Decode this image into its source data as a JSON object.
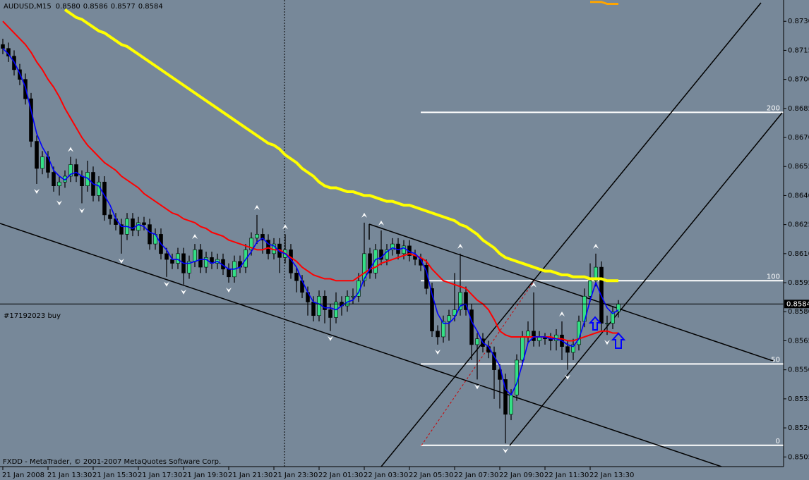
{
  "chart_data": {
    "type": "candlestick",
    "title": "AUDUSD,M15",
    "quote_labels": [
      "0.8580",
      "0.8586",
      "0.8577",
      "0.8584"
    ],
    "order_label": "#17192023 buy",
    "footer": "FXDD - MetaTrader, © 2001-2007 MetaQuotes Software Corp.",
    "background": "#778899",
    "up_color": "#33e085",
    "down_color": "#000000",
    "categories": [
      "21 Jan 2008",
      null,
      null,
      null,
      null,
      null,
      null,
      null,
      "21 Jan 13:30",
      null,
      null,
      null,
      null,
      null,
      null,
      null,
      "21 Jan 15:30",
      null,
      null,
      null,
      null,
      null,
      null,
      null,
      "21 Jan 17:30",
      null,
      null,
      null,
      null,
      null,
      null,
      null,
      "21 Jan 19:30",
      null,
      null,
      null,
      null,
      null,
      null,
      null,
      "21 Jan 21:30",
      null,
      null,
      null,
      null,
      null,
      null,
      null,
      "21 Jan 23:30",
      null,
      null,
      null,
      null,
      null,
      null,
      null,
      "22 Jan 01:30",
      null,
      null,
      null,
      null,
      null,
      null,
      null,
      "22 Jan 03:30",
      null,
      null,
      null,
      null,
      null,
      null,
      null,
      "22 Jan 05:30",
      null,
      null,
      null,
      null,
      null,
      null,
      null,
      "22 Jan 07:30",
      null,
      null,
      null,
      null,
      null,
      null,
      null,
      "22 Jan 09:30",
      null,
      null,
      null,
      null,
      null,
      null,
      null,
      "22 Jan 11:30",
      null,
      null,
      null,
      null,
      null,
      null,
      null,
      "22 Jan 13:30",
      null,
      null,
      null,
      null,
      null
    ],
    "open": [
      0.8718,
      0.8716,
      0.8712,
      0.8705,
      0.87,
      0.869,
      0.8668,
      0.8654,
      0.866,
      0.8652,
      0.8645,
      0.8647,
      0.865,
      0.8656,
      0.865,
      0.8645,
      0.8652,
      0.864,
      0.8647,
      0.863,
      0.8628,
      0.8625,
      0.862,
      0.8628,
      0.8622,
      0.8626,
      0.8625,
      0.8615,
      0.862,
      0.861,
      0.8607,
      0.8605,
      0.861,
      0.86,
      0.8606,
      0.8612,
      0.8603,
      0.8608,
      0.8605,
      0.8607,
      0.8602,
      0.8598,
      0.8606,
      0.8603,
      0.8612,
      0.8618,
      0.862,
      0.8617,
      0.861,
      0.8615,
      0.8608,
      0.8612,
      0.86,
      0.8596,
      0.859,
      0.8585,
      0.8578,
      0.8588,
      0.8581,
      0.8577,
      0.8585,
      0.8583,
      0.8588,
      0.8588,
      0.8596,
      0.861,
      0.86,
      0.8612,
      0.8607,
      0.8612,
      0.8615,
      0.861,
      0.8614,
      0.8609,
      0.8607,
      0.8604,
      0.8592,
      0.857,
      0.8567,
      0.8575,
      0.8578,
      0.8581,
      0.859,
      0.8581,
      0.8563,
      0.8566,
      0.8562,
      0.8559,
      0.855,
      0.8545,
      0.8527,
      0.8537,
      0.8555,
      0.8567,
      0.857,
      0.8565,
      0.8567,
      0.8566,
      0.8565,
      0.8568,
      0.8562,
      0.8559,
      0.8563,
      0.8575,
      0.8588,
      0.8596,
      0.8603,
      0.8574,
      0.8574,
      0.858
    ],
    "high": [
      0.8721,
      0.8719,
      0.8715,
      0.8708,
      0.8703,
      0.8693,
      0.8671,
      0.8663,
      0.8663,
      0.8655,
      0.865,
      0.8653,
      0.866,
      0.8659,
      0.8653,
      0.8658,
      0.8655,
      0.865,
      0.865,
      0.8633,
      0.8631,
      0.8628,
      0.8631,
      0.8631,
      0.8629,
      0.8629,
      0.8628,
      0.8623,
      0.8623,
      0.8613,
      0.861,
      0.8613,
      0.8613,
      0.8609,
      0.8615,
      0.8615,
      0.8611,
      0.8611,
      0.861,
      0.861,
      0.8605,
      0.8609,
      0.8609,
      0.8615,
      0.8621,
      0.863,
      0.8623,
      0.862,
      0.8618,
      0.8618,
      0.862,
      0.8615,
      0.8603,
      0.8599,
      0.8593,
      0.8588,
      0.8591,
      0.8591,
      0.8584,
      0.859,
      0.8588,
      0.8591,
      0.8592,
      0.86,
      0.8626,
      0.8613,
      0.8615,
      0.8622,
      0.8615,
      0.8618,
      0.8618,
      0.8617,
      0.8617,
      0.8612,
      0.861,
      0.8607,
      0.8595,
      0.8573,
      0.8578,
      0.8581,
      0.86,
      0.861,
      0.8593,
      0.8584,
      0.8569,
      0.8569,
      0.8565,
      0.8562,
      0.8553,
      0.8548,
      0.854,
      0.8558,
      0.857,
      0.8575,
      0.859,
      0.857,
      0.8569,
      0.8569,
      0.8571,
      0.8575,
      0.8565,
      0.8566,
      0.8578,
      0.8592,
      0.8605,
      0.861,
      0.8606,
      0.8578,
      0.8583,
      0.8586
    ],
    "low": [
      0.8713,
      0.8709,
      0.8702,
      0.8697,
      0.8687,
      0.8665,
      0.8646,
      0.8651,
      0.8649,
      0.8642,
      0.864,
      0.8644,
      0.8647,
      0.8647,
      0.8636,
      0.8642,
      0.8637,
      0.8637,
      0.8627,
      0.8625,
      0.8622,
      0.861,
      0.8617,
      0.8619,
      0.8619,
      0.8622,
      0.8612,
      0.8612,
      0.8607,
      0.8598,
      0.8602,
      0.8602,
      0.8594,
      0.8597,
      0.8603,
      0.86,
      0.86,
      0.8602,
      0.8602,
      0.8599,
      0.8595,
      0.8595,
      0.86,
      0.86,
      0.8609,
      0.8615,
      0.861,
      0.8607,
      0.8607,
      0.86,
      0.8605,
      0.8597,
      0.859,
      0.8587,
      0.8578,
      0.8575,
      0.8575,
      0.8574,
      0.857,
      0.8574,
      0.8578,
      0.858,
      0.8584,
      0.8585,
      0.8593,
      0.8597,
      0.8597,
      0.8604,
      0.8604,
      0.8609,
      0.8607,
      0.8607,
      0.8606,
      0.8604,
      0.8601,
      0.8589,
      0.8567,
      0.8563,
      0.8564,
      0.8565,
      0.8575,
      0.8578,
      0.8578,
      0.8555,
      0.8545,
      0.8559,
      0.8556,
      0.8535,
      0.853,
      0.8512,
      0.8524,
      0.8534,
      0.8552,
      0.8564,
      0.8562,
      0.8562,
      0.8563,
      0.856,
      0.856,
      0.8555,
      0.855,
      0.8555,
      0.856,
      0.8572,
      0.8585,
      0.8593,
      0.857,
      0.8568,
      0.8571,
      0.8577
    ],
    "close": [
      0.8716,
      0.8712,
      0.8705,
      0.87,
      0.869,
      0.8668,
      0.8654,
      0.866,
      0.8652,
      0.8645,
      0.8647,
      0.865,
      0.8656,
      0.865,
      0.8645,
      0.8652,
      0.864,
      0.8647,
      0.863,
      0.8628,
      0.8625,
      0.862,
      0.8628,
      0.8622,
      0.8626,
      0.8625,
      0.8615,
      0.862,
      0.861,
      0.8607,
      0.8605,
      0.861,
      0.86,
      0.8606,
      0.8612,
      0.8603,
      0.8608,
      0.8605,
      0.8607,
      0.8602,
      0.8598,
      0.8606,
      0.8603,
      0.8612,
      0.8618,
      0.862,
      0.8617,
      0.861,
      0.8615,
      0.8608,
      0.8612,
      0.86,
      0.8596,
      0.859,
      0.8585,
      0.8578,
      0.8588,
      0.8581,
      0.8577,
      0.8585,
      0.8583,
      0.8588,
      0.8588,
      0.8596,
      0.861,
      0.86,
      0.8612,
      0.8607,
      0.8612,
      0.8615,
      0.861,
      0.8614,
      0.8609,
      0.8607,
      0.8604,
      0.8592,
      0.857,
      0.8567,
      0.8575,
      0.8578,
      0.8581,
      0.859,
      0.8581,
      0.8563,
      0.8566,
      0.8562,
      0.8559,
      0.855,
      0.8545,
      0.8527,
      0.8537,
      0.8555,
      0.8567,
      0.857,
      0.8565,
      0.8567,
      0.8566,
      0.8565,
      0.8568,
      0.8562,
      0.8559,
      0.8563,
      0.8575,
      0.8588,
      0.8596,
      0.8603,
      0.8574,
      0.8574,
      0.858,
      0.8584
    ],
    "series": [
      {
        "color": "#ffff00",
        "width": 4,
        "values": [
          null,
          null,
          null,
          null,
          null,
          null,
          null,
          null,
          null,
          null,
          null,
          0.8736,
          0.8734,
          0.8732,
          0.8731,
          0.8729,
          0.8727,
          0.8725,
          0.8724,
          0.8722,
          0.872,
          0.8718,
          0.8717,
          0.8715,
          0.8713,
          0.8711,
          0.8709,
          0.8707,
          0.8705,
          0.8703,
          0.8701,
          0.8699,
          0.8697,
          0.8695,
          0.8693,
          0.8691,
          0.8689,
          0.8687,
          0.8685,
          0.8683,
          0.8681,
          0.8679,
          0.8677,
          0.8675,
          0.8673,
          0.8671,
          0.8669,
          0.8667,
          0.8666,
          0.8664,
          0.8661,
          0.8659,
          0.8657,
          0.8654,
          0.8652,
          0.865,
          0.8647,
          0.8645,
          0.8644,
          0.8644,
          0.8643,
          0.8642,
          0.8642,
          0.8641,
          0.864,
          0.864,
          0.8639,
          0.8638,
          0.8637,
          0.8637,
          0.8636,
          0.8635,
          0.8635,
          0.8634,
          0.8633,
          0.8632,
          0.8631,
          0.863,
          0.8629,
          0.8628,
          0.8627,
          0.8625,
          0.8624,
          0.8622,
          0.862,
          0.8617,
          0.8615,
          0.8613,
          0.861,
          0.8608,
          0.8607,
          0.8606,
          0.8605,
          0.8604,
          0.8603,
          0.8602,
          0.8601,
          0.8601,
          0.86,
          0.8599,
          0.8599,
          0.8598,
          0.8598,
          0.8598,
          0.8597,
          0.8597,
          0.8597,
          0.8596,
          0.8596,
          0.8596
        ]
      },
      {
        "color": "#ff0000",
        "width": 2,
        "values": [
          0.873,
          0.8727,
          0.8724,
          0.8721,
          0.8718,
          0.8714,
          0.8709,
          0.8705,
          0.87,
          0.8696,
          0.8691,
          0.8685,
          0.868,
          0.8675,
          0.867,
          0.8666,
          0.8663,
          0.866,
          0.8657,
          0.8655,
          0.8653,
          0.865,
          0.8648,
          0.8646,
          0.8644,
          0.8641,
          0.8639,
          0.8637,
          0.8635,
          0.8633,
          0.8631,
          0.863,
          0.8628,
          0.8627,
          0.8626,
          0.8624,
          0.8623,
          0.8621,
          0.862,
          0.8619,
          0.8617,
          0.8616,
          0.8615,
          0.8614,
          0.8613,
          0.8612,
          0.8612,
          0.8613,
          0.8612,
          0.8612,
          0.861,
          0.8608,
          0.8606,
          0.8603,
          0.8601,
          0.8599,
          0.8598,
          0.8597,
          0.8597,
          0.8596,
          0.8596,
          0.8596,
          0.8596,
          0.8598,
          0.86,
          0.8602,
          0.8603,
          0.8605,
          0.8606,
          0.8607,
          0.8608,
          0.8609,
          0.861,
          0.8609,
          0.8608,
          0.8606,
          0.8602,
          0.8599,
          0.8596,
          0.8595,
          0.8594,
          0.8593,
          0.8592,
          0.8589,
          0.8586,
          0.8584,
          0.8581,
          0.8576,
          0.857,
          0.8568,
          0.8567,
          0.8567,
          0.8567,
          0.8567,
          0.8567,
          0.8567,
          0.8567,
          0.8567,
          0.8566,
          0.8566,
          0.8565,
          0.8565,
          0.8566,
          0.8567,
          0.8568,
          0.8569,
          0.857,
          0.857,
          0.8569,
          0.8569
        ]
      },
      {
        "color": "#0000ff",
        "width": 1.6,
        "values": [
          0.8716,
          0.8713,
          0.8709,
          0.8703,
          0.8696,
          0.8684,
          0.8672,
          0.8665,
          0.866,
          0.8653,
          0.865,
          0.8648,
          0.8651,
          0.8652,
          0.865,
          0.8649,
          0.8646,
          0.8645,
          0.864,
          0.8635,
          0.8628,
          0.8624,
          0.8624,
          0.8623,
          0.8625,
          0.8624,
          0.8621,
          0.862,
          0.8615,
          0.8612,
          0.8607,
          0.8607,
          0.8605,
          0.8605,
          0.8606,
          0.8607,
          0.8607,
          0.8605,
          0.8606,
          0.8604,
          0.8602,
          0.8602,
          0.8603,
          0.8607,
          0.8611,
          0.8616,
          0.8618,
          0.8615,
          0.8614,
          0.8611,
          0.861,
          0.8607,
          0.8603,
          0.8596,
          0.859,
          0.8585,
          0.8584,
          0.8582,
          0.8582,
          0.8581,
          0.8583,
          0.8585,
          0.8586,
          0.859,
          0.8597,
          0.8602,
          0.8607,
          0.8608,
          0.8611,
          0.8613,
          0.8612,
          0.8613,
          0.8611,
          0.861,
          0.8607,
          0.8601,
          0.8589,
          0.8579,
          0.8574,
          0.8574,
          0.8577,
          0.8583,
          0.8584,
          0.8575,
          0.857,
          0.8564,
          0.8562,
          0.8557,
          0.8552,
          0.854,
          0.8537,
          0.8543,
          0.8553,
          0.8564,
          0.8567,
          0.8567,
          0.8567,
          0.8566,
          0.8566,
          0.8565,
          0.8563,
          0.8562,
          0.8566,
          0.8575,
          0.8586,
          0.8595,
          0.8588,
          0.8582,
          0.8579,
          0.8581
        ]
      },
      {
        "color": "#ffa500",
        "width": 3,
        "values": [
          null,
          null,
          null,
          null,
          null,
          null,
          null,
          null,
          null,
          null,
          null,
          null,
          null,
          null,
          null,
          null,
          null,
          null,
          null,
          null,
          null,
          null,
          null,
          null,
          null,
          null,
          null,
          null,
          null,
          null,
          null,
          null,
          null,
          null,
          null,
          null,
          null,
          null,
          null,
          null,
          null,
          null,
          null,
          null,
          null,
          null,
          null,
          null,
          null,
          null,
          null,
          null,
          null,
          null,
          null,
          null,
          null,
          null,
          null,
          null,
          null,
          null,
          null,
          null,
          null,
          null,
          null,
          null,
          null,
          null,
          null,
          null,
          null,
          null,
          null,
          null,
          null,
          null,
          null,
          null,
          null,
          null,
          null,
          null,
          null,
          null,
          null,
          null,
          null,
          null,
          null,
          null,
          null,
          null,
          null,
          null,
          null,
          null,
          null,
          null,
          null,
          null,
          null,
          null,
          0.874,
          0.874,
          0.874,
          0.8739,
          0.8739,
          0.8739
        ]
      }
    ],
    "fibo_levels": [
      {
        "value": 0.8683,
        "label": "200"
      },
      {
        "value": 0.8596,
        "label": "100"
      },
      {
        "value": 0.8553,
        "label": "50"
      },
      {
        "value": 0.8511,
        "label": "0"
      }
    ],
    "ylim": [
      0.85,
      0.8741
    ],
    "yticks": [
      {
        "value": 0.873,
        "label": "0.8730"
      },
      0.8715,
      {
        "value": 0.87,
        "label": "0.8700"
      },
      0.8685,
      {
        "value": 0.867,
        "label": "0.8670"
      },
      0.8655,
      {
        "value": 0.864,
        "label": "0.8640"
      },
      0.8625,
      {
        "value": 0.861,
        "label": "0.8610"
      },
      0.8595,
      {
        "value": 0.858,
        "label": "0.8580"
      },
      0.8565,
      {
        "value": 0.855,
        "label": "0.8550"
      },
      0.8535,
      {
        "value": 0.852,
        "label": "0.8520"
      },
      0.8505
    ],
    "grid": false
  }
}
